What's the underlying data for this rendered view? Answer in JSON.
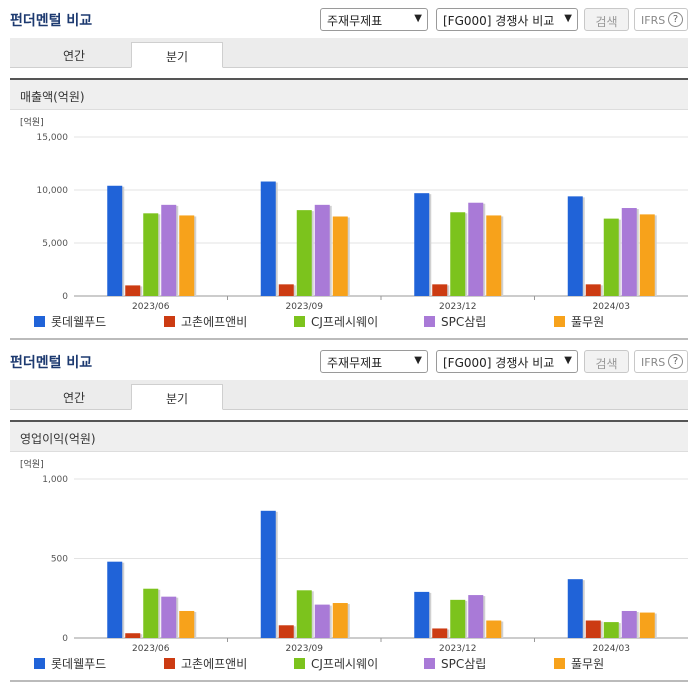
{
  "sections": [
    {
      "title": "펀더멘털 비교",
      "select1": "주재무제표",
      "select2": "[FG000] 경쟁사 비교",
      "search_label": "검색",
      "ifrs_label": "IFRS",
      "ifrs_help": "?",
      "tabs": [
        {
          "label": "연간"
        },
        {
          "label": "분기"
        }
      ],
      "chart_title": "매출액(억원)",
      "unit": "[억원]"
    },
    {
      "title": "펀더멘털 비교",
      "select1": "주재무제표",
      "select2": "[FG000] 경쟁사 비교",
      "search_label": "검색",
      "ifrs_label": "IFRS",
      "ifrs_help": "?",
      "tabs": [
        {
          "label": "연간"
        },
        {
          "label": "분기"
        }
      ],
      "chart_title": "영업이익(억원)",
      "unit": "[억원]"
    }
  ],
  "colors": {
    "series": [
      "#2063d8",
      "#cc3b12",
      "#7cc31d",
      "#a97ad7",
      "#f7a21b"
    ]
  },
  "chart_data": [
    {
      "type": "bar",
      "title": "매출액(억원)",
      "ylabel": "[억원]",
      "categories": [
        "2023/06",
        "2023/09",
        "2023/12",
        "2024/03"
      ],
      "ylim": [
        0,
        15000
      ],
      "yticks": [
        0,
        5000,
        10000,
        15000
      ],
      "ytick_labels": [
        "0",
        "5,000",
        "10,000",
        "15,000"
      ],
      "grid": true,
      "legend": "bottom",
      "series": [
        {
          "name": "롯데웰푸드",
          "values": [
            10400,
            10800,
            9700,
            9400
          ]
        },
        {
          "name": "고촌에프앤비",
          "values": [
            1000,
            1100,
            1100,
            1100
          ]
        },
        {
          "name": "CJ프레시웨이",
          "values": [
            7800,
            8100,
            7900,
            7300
          ]
        },
        {
          "name": "SPC삼립",
          "values": [
            8600,
            8600,
            8800,
            8300
          ]
        },
        {
          "name": "풀무원",
          "values": [
            7600,
            7500,
            7600,
            7700
          ]
        }
      ]
    },
    {
      "type": "bar",
      "title": "영업이익(억원)",
      "ylabel": "[억원]",
      "categories": [
        "2023/06",
        "2023/09",
        "2023/12",
        "2024/03"
      ],
      "ylim": [
        0,
        1000
      ],
      "yticks": [
        0,
        500,
        1000
      ],
      "ytick_labels": [
        "0",
        "500",
        "1,000"
      ],
      "grid": true,
      "legend": "bottom",
      "series": [
        {
          "name": "롯데웰푸드",
          "values": [
            480,
            800,
            290,
            370
          ]
        },
        {
          "name": "고촌에프앤비",
          "values": [
            30,
            80,
            60,
            110
          ]
        },
        {
          "name": "CJ프레시웨이",
          "values": [
            310,
            300,
            240,
            100
          ]
        },
        {
          "name": "SPC삼립",
          "values": [
            260,
            210,
            270,
            170
          ]
        },
        {
          "name": "풀무원",
          "values": [
            170,
            220,
            110,
            160
          ]
        }
      ]
    }
  ]
}
